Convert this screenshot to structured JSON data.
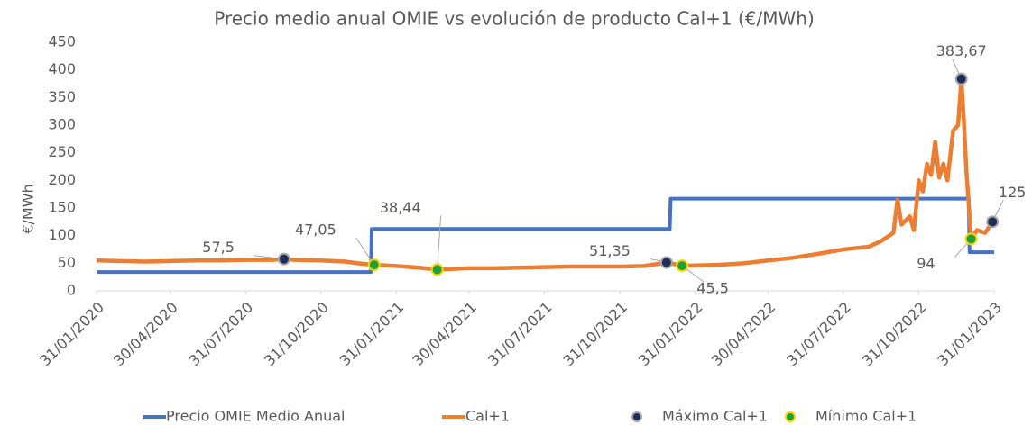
{
  "chart_data": {
    "type": "line",
    "title": "Precio medio anual OMIE vs evolución de producto Cal+1 (€/MWh)",
    "y_label": "€/MWh",
    "xlim": [
      "31/01/2020",
      "31/01/2023"
    ],
    "xticks": [
      "31/01/2020",
      "30/04/2020",
      "31/07/2020",
      "31/10/2020",
      "31/01/2021",
      "30/04/2021",
      "31/07/2021",
      "31/10/2021",
      "31/01/2022",
      "30/04/2022",
      "31/07/2022",
      "31/10/2022",
      "31/01/2023"
    ],
    "ylim": [
      0,
      450
    ],
    "yticks": [
      0,
      50,
      100,
      150,
      200,
      250,
      300,
      350,
      400,
      450
    ],
    "grid": false,
    "legend": "bottom",
    "series": [
      {
        "name": "Precio OMIE Medio Anual",
        "type": "line",
        "color": "#4472c4",
        "x": [
          "31/01/2020",
          "31/12/2020",
          "01/01/2021",
          "31/12/2021",
          "01/01/2022",
          "31/12/2022",
          "01/01/2023",
          "31/01/2023"
        ],
        "values": [
          34,
          34,
          112,
          112,
          167,
          167,
          70,
          70
        ]
      },
      {
        "name": "Cal+1",
        "type": "line",
        "color": "#ed7d31",
        "x": [
          "31/01/2020",
          "29/02/2020",
          "31/03/2020",
          "30/04/2020",
          "31/05/2020",
          "30/06/2020",
          "31/07/2020",
          "31/08/2020",
          "16/09/2020",
          "30/09/2020",
          "31/10/2020",
          "30/11/2020",
          "15/12/2020",
          "04/01/2021",
          "31/01/2021",
          "28/02/2021",
          "22/03/2021",
          "30/04/2021",
          "31/05/2021",
          "30/06/2021",
          "31/07/2021",
          "31/08/2021",
          "30/09/2021",
          "31/10/2021",
          "30/11/2021",
          "27/12/2021",
          "15/01/2022",
          "28/02/2022",
          "31/03/2022",
          "30/04/2022",
          "31/05/2022",
          "30/06/2022",
          "31/07/2022",
          "31/08/2022",
          "15/09/2022",
          "30/09/2022",
          "05/10/2022",
          "10/10/2022",
          "20/10/2022",
          "25/10/2022",
          "31/10/2022",
          "05/11/2022",
          "10/11/2022",
          "15/11/2022",
          "20/11/2022",
          "25/11/2022",
          "30/11/2022",
          "05/12/2022",
          "12/12/2022",
          "18/12/2022",
          "22/12/2022",
          "25/12/2022",
          "28/12/2022",
          "03/01/2023",
          "10/01/2023",
          "20/01/2023",
          "29/01/2023"
        ],
        "values": [
          55,
          54,
          53,
          54,
          55,
          55,
          56,
          56,
          57.5,
          56,
          55,
          53,
          50,
          47.05,
          45,
          42,
          38.44,
          41,
          41,
          42,
          43,
          44,
          44,
          44,
          45,
          51.35,
          45.5,
          47,
          50,
          55,
          60,
          67,
          75,
          80,
          90,
          105,
          165,
          120,
          135,
          110,
          200,
          180,
          230,
          210,
          270,
          205,
          230,
          200,
          290,
          300,
          383.67,
          310,
          220,
          94,
          110,
          105,
          125
        ]
      },
      {
        "name": "Máximo Cal+1",
        "type": "scatter",
        "color": "#1f2d5a",
        "edge": "#a6a6a6",
        "x": [
          "16/09/2020",
          "27/12/2021",
          "22/12/2022",
          "29/01/2023"
        ],
        "values": [
          57.5,
          51.35,
          383.67,
          125
        ],
        "value_labels": [
          "57,5",
          "51,35",
          "383,67",
          "125"
        ]
      },
      {
        "name": "Mínimo Cal+1",
        "type": "scatter",
        "color": "#21a038",
        "edge": "#ffd400",
        "x": [
          "04/01/2021",
          "22/03/2021",
          "15/01/2022",
          "03/01/2023"
        ],
        "values": [
          47.05,
          38.44,
          45.5,
          94
        ],
        "value_labels": [
          "47,05",
          "38,44",
          "45,5",
          "94"
        ]
      }
    ]
  }
}
